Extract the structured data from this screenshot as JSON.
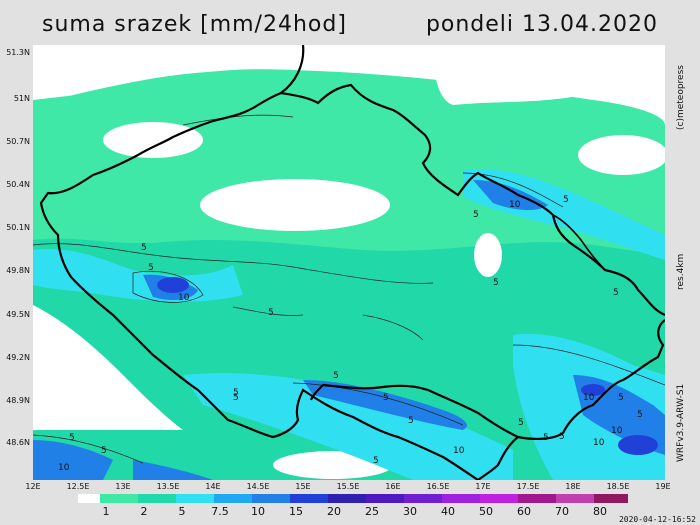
{
  "header": {
    "title": "suma srazek [mm/24hod]",
    "date": "pondeli 13.04.2020"
  },
  "axes": {
    "lat_labels": [
      "51.3N",
      "51N",
      "50.7N",
      "50.4N",
      "50.1N",
      "49.8N",
      "49.5N",
      "49.2N",
      "48.9N",
      "48.6N"
    ],
    "lon_labels": [
      "12E",
      "12.5E",
      "13E",
      "13.5E",
      "14E",
      "14.5E",
      "15E",
      "15.5E",
      "16E",
      "16.5E",
      "17E",
      "17.5E",
      "18E",
      "18.5E",
      "19E"
    ]
  },
  "side_labels": {
    "copyright": "(c)meteopress",
    "resolution": "res.4km",
    "model": "WRFv3.9-ARW-S1"
  },
  "legend": {
    "labels": [
      "1",
      "2",
      "5",
      "7.5",
      "10",
      "15",
      "20",
      "25",
      "30",
      "40",
      "50",
      "60",
      "70",
      "80"
    ],
    "colors": [
      "#ffffff",
      "#40e8a8",
      "#20d8a8",
      "#30e0f0",
      "#20a8f0",
      "#2080e8",
      "#2040d8",
      "#3020b0",
      "#5018c0",
      "#7020d0",
      "#a020e0",
      "#c020e0",
      "#a01890",
      "#c040b0",
      "#901860"
    ]
  },
  "contour_labels": [
    "5",
    "10",
    "5",
    "10",
    "5",
    "5",
    "5",
    "5",
    "5",
    "5",
    "10",
    "10",
    "5",
    "5",
    "5",
    "10",
    "5",
    "5",
    "5",
    "10",
    "5",
    "5",
    "5",
    "10",
    "5",
    "5",
    "5"
  ],
  "footer": {
    "timestamp": "2020-04-12-16:52"
  }
}
